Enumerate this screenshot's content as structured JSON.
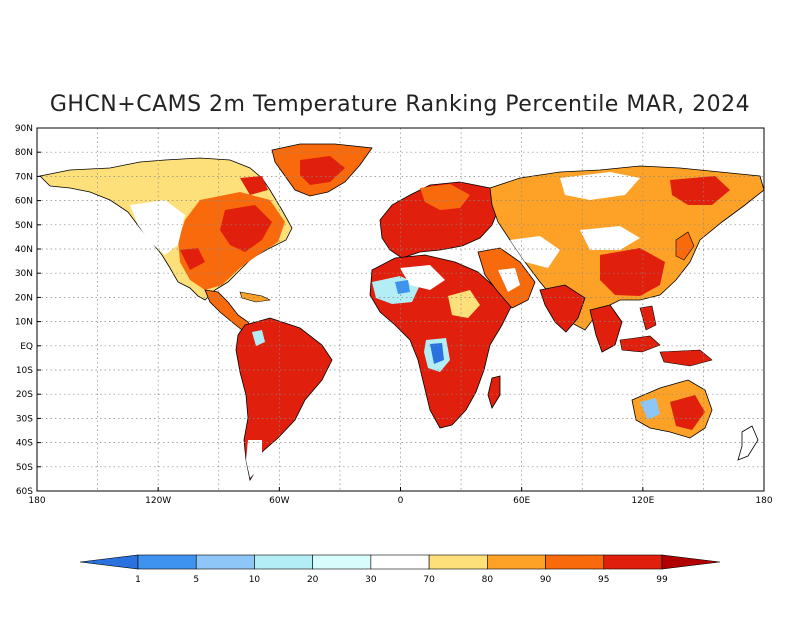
{
  "title": "GHCN+CAMS 2m Temperature Ranking Percentile MAR, 2024",
  "map": {
    "lat_labels": [
      "90N",
      "80N",
      "70N",
      "60N",
      "50N",
      "40N",
      "30N",
      "20N",
      "10N",
      "EQ",
      "10S",
      "20S",
      "30S",
      "40S",
      "50S",
      "60S"
    ],
    "lon_labels": [
      "180",
      "120W",
      "60W",
      "0",
      "60E",
      "120E",
      "180"
    ]
  },
  "colorbar": {
    "labels": [
      "1",
      "5",
      "10",
      "20",
      "30",
      "70",
      "80",
      "90",
      "95",
      "99"
    ],
    "colors": [
      "#2a72e0",
      "#3f93f0",
      "#8ec6f7",
      "#b3eef6",
      "#d8fcfc",
      "#ffffff",
      "#fde07a",
      "#fda227",
      "#f96a0d",
      "#e0200c",
      "#b00000"
    ]
  },
  "palette": {
    "land_warm": "#e0200c",
    "coast": "#000000",
    "grid": "#888888"
  }
}
